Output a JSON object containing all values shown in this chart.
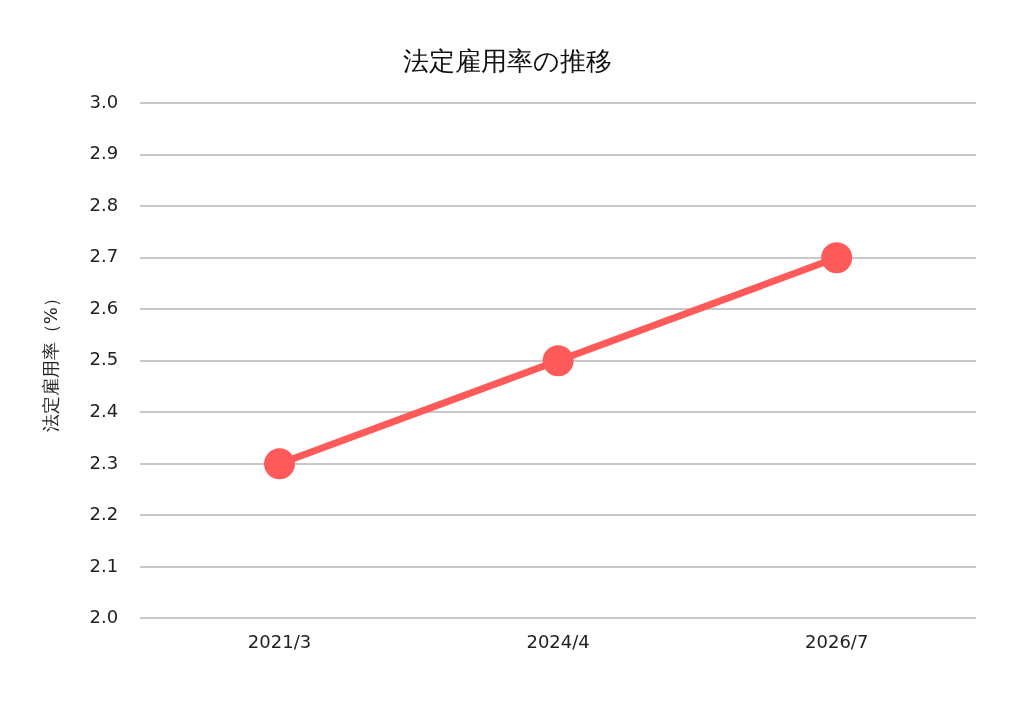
{
  "chart_data": {
    "type": "line",
    "title": "法定雇用率の推移",
    "ylabel": "法定雇用率（%）",
    "categories": [
      "2021/3",
      "2024/4",
      "2026/7"
    ],
    "series": [
      {
        "color": "#ff5a5a",
        "values": [
          2.3,
          2.5,
          2.7
        ]
      }
    ],
    "ylim": [
      2,
      3
    ],
    "yticks": [
      {
        "value": 2,
        "label": "2.0"
      },
      2.1,
      2.2,
      2.3,
      2.4,
      2.5,
      2.6,
      2.7,
      2.8,
      2.9,
      {
        "value": 3,
        "label": "3.0"
      }
    ],
    "grid": "y",
    "legend": false,
    "marker": "circle",
    "line_style": "solid"
  }
}
